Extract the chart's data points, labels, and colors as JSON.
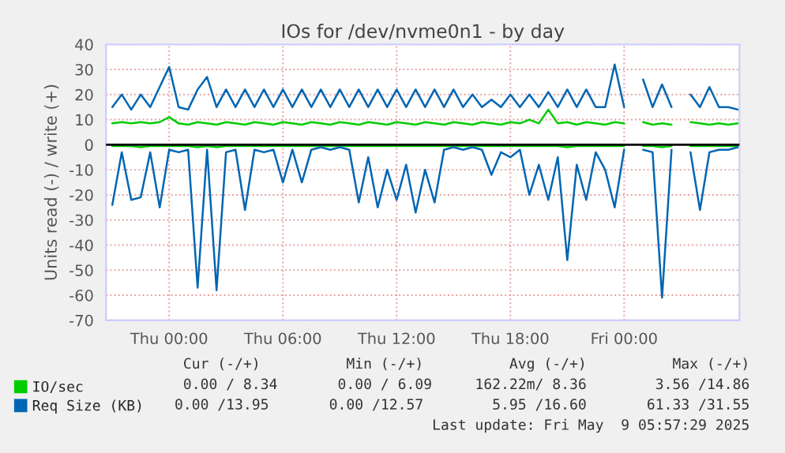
{
  "chart_data": {
    "type": "line",
    "title": "IOs for /dev/nvme0n1 - by day",
    "ylabel": "Units read (-) / write (+)",
    "x": [
      "2025-05-07T21:00",
      "2025-05-07T21:30",
      "2025-05-07T22:00",
      "2025-05-07T22:30",
      "2025-05-07T23:00",
      "2025-05-07T23:30",
      "2025-05-08T00:00",
      "2025-05-08T00:30",
      "2025-05-08T01:00",
      "2025-05-08T01:30",
      "2025-05-08T02:00",
      "2025-05-08T02:30",
      "2025-05-08T03:00",
      "2025-05-08T03:30",
      "2025-05-08T04:00",
      "2025-05-08T04:30",
      "2025-05-08T05:00",
      "2025-05-08T05:30",
      "2025-05-08T06:00",
      "2025-05-08T06:30",
      "2025-05-08T07:00",
      "2025-05-08T07:30",
      "2025-05-08T08:00",
      "2025-05-08T08:30",
      "2025-05-08T09:00",
      "2025-05-08T09:30",
      "2025-05-08T10:00",
      "2025-05-08T10:30",
      "2025-05-08T11:00",
      "2025-05-08T11:30",
      "2025-05-08T12:00",
      "2025-05-08T12:30",
      "2025-05-08T13:00",
      "2025-05-08T13:30",
      "2025-05-08T14:00",
      "2025-05-08T14:30",
      "2025-05-08T15:00",
      "2025-05-08T15:30",
      "2025-05-08T16:00",
      "2025-05-08T16:30",
      "2025-05-08T17:00",
      "2025-05-08T17:30",
      "2025-05-08T18:00",
      "2025-05-08T18:30",
      "2025-05-08T19:00",
      "2025-05-08T19:30",
      "2025-05-08T20:00",
      "2025-05-08T20:30",
      "2025-05-08T21:00",
      "2025-05-08T21:30",
      "2025-05-08T22:00",
      "2025-05-08T22:30",
      "2025-05-08T23:00",
      "2025-05-08T23:30",
      "2025-05-09T00:00",
      "2025-05-09T00:30",
      "2025-05-09T01:00",
      "2025-05-09T01:30",
      "2025-05-09T02:00",
      "2025-05-09T02:30",
      "2025-05-09T03:00",
      "2025-05-09T03:30",
      "2025-05-09T04:00",
      "2025-05-09T04:30",
      "2025-05-09T05:00",
      "2025-05-09T05:30",
      "2025-05-09T06:00"
    ],
    "series": [
      {
        "name": "IO/sec",
        "color": "#00cc00",
        "values": [
          8.5,
          9,
          8.5,
          9,
          8.5,
          9,
          11,
          8.5,
          8,
          9,
          8.5,
          8,
          9,
          8.5,
          8,
          9,
          8.5,
          8,
          9,
          8.5,
          8,
          9,
          8.5,
          8,
          9,
          8.5,
          8,
          9,
          8.5,
          8,
          9,
          8.5,
          8,
          9,
          8.5,
          8,
          9,
          8.5,
          8,
          9,
          8.5,
          8,
          9,
          8.5,
          10,
          8.5,
          14,
          8.5,
          9,
          8,
          9,
          8.5,
          8,
          9,
          8.5,
          null,
          9,
          8,
          8.5,
          8,
          null,
          9,
          8.5,
          8,
          8.5,
          8,
          8.5
        ]
      },
      {
        "name": "Req Size (KB)",
        "color": "#0066b3",
        "values": [
          15,
          20,
          14,
          20,
          15,
          23,
          31,
          15,
          14,
          22,
          27,
          15,
          22,
          15,
          22,
          15,
          22,
          15,
          22,
          15,
          22,
          15,
          22,
          15,
          22,
          15,
          22,
          15,
          22,
          15,
          22,
          15,
          22,
          15,
          22,
          15,
          22,
          15,
          20,
          15,
          18,
          15,
          20,
          15,
          20,
          15,
          21,
          15,
          22,
          15,
          22,
          15,
          15,
          32,
          15,
          null,
          26,
          15,
          24,
          15,
          null,
          20,
          15,
          23,
          15,
          15,
          14
        ]
      },
      {
        "color": "#00cc00",
        "values": [
          -0.5,
          -0.5,
          -0.5,
          -1,
          -0.5,
          -0.5,
          -0.5,
          -0.5,
          -0.5,
          -1,
          -0.5,
          -1,
          -0.5,
          -0.5,
          -0.5,
          -0.5,
          -0.5,
          -0.5,
          -0.5,
          -0.5,
          -0.5,
          -0.5,
          -0.5,
          -0.5,
          -0.5,
          -0.5,
          -0.5,
          -0.5,
          -0.5,
          -0.5,
          -0.5,
          -0.5,
          -0.5,
          -0.5,
          -0.5,
          -0.5,
          -0.5,
          -0.5,
          -0.5,
          -0.5,
          -0.5,
          -0.5,
          -0.5,
          -0.5,
          -0.5,
          -0.5,
          -0.5,
          -0.5,
          -1,
          -0.5,
          -0.5,
          -0.5,
          -0.5,
          -0.5,
          -0.5,
          null,
          -0.5,
          -0.5,
          -1,
          -0.5,
          null,
          -0.5,
          -0.5,
          -0.5,
          -0.5,
          -0.5,
          -0.5
        ]
      },
      {
        "color": "#0066b3",
        "values": [
          -24,
          -3,
          -22,
          -21,
          -3,
          -25,
          -2,
          -3,
          -2,
          -57,
          -2,
          -58,
          -3,
          -2,
          -26,
          -2,
          -3,
          -2,
          -15,
          -2,
          -15,
          -2,
          -1,
          -2,
          -1,
          -2,
          -23,
          -5,
          -25,
          -10,
          -22,
          -8,
          -27,
          -10,
          -23,
          -2,
          -1,
          -2,
          -1,
          -2,
          -12,
          -3,
          -5,
          -2,
          -20,
          -8,
          -22,
          -5,
          -46,
          -8,
          -22,
          -3,
          -10,
          -25,
          -2,
          null,
          -2,
          -3,
          -61,
          -2,
          null,
          -3,
          -26,
          -3,
          -2,
          -2,
          -1
        ]
      }
    ],
    "xlim": [
      "2025-05-07T20:40",
      "2025-05-09T06:05"
    ],
    "xticks": [
      {
        "value": "2025-05-08T00:00",
        "label": "Thu 00:00"
      },
      {
        "value": "2025-05-08T06:00",
        "label": "Thu 06:00"
      },
      {
        "value": "2025-05-08T12:00",
        "label": "Thu 12:00"
      },
      {
        "value": "2025-05-08T18:00",
        "label": "Thu 18:00"
      },
      {
        "value": "2025-05-09T00:00",
        "label": "Fri 00:00"
      }
    ],
    "ylim": [
      -70,
      40
    ],
    "yticks": [
      -70,
      -60,
      -50,
      -40,
      -30,
      -20,
      -10,
      0,
      10,
      20,
      30,
      40
    ],
    "ref_lines": [
      {
        "axis": "y",
        "value": 0,
        "color": "#000000"
      }
    ],
    "grid": true,
    "legend": "bottom",
    "marker": "none",
    "line_style": "solid",
    "annotations": [
      "Cur (-/+)          Min (-/+)          Avg (-/+)          Max (-/+)",
      "0.00 / 8.34       0.00 / 6.09     162.22m/ 8.36        3.56 /14.86",
      "0.00 /13.95       0.00 /12.57        5.95 /16.60       61.33 /31.55",
      "Last update: Fri May  9 05:57:29 2025"
    ]
  }
}
